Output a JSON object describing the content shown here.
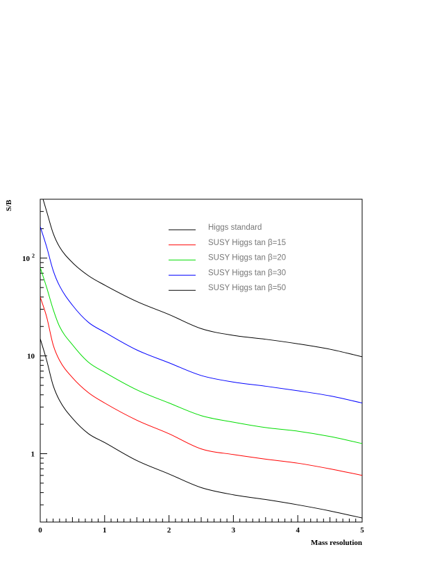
{
  "chart_data": {
    "type": "line",
    "title": "",
    "xlabel": "Mass resolution",
    "ylabel": "S/B",
    "xlim": [
      0,
      5
    ],
    "ylim": [
      0.2,
      400
    ],
    "yscale": "log",
    "grid": false,
    "legend_position": "top-center",
    "x_ticks": [
      0,
      1,
      2,
      3,
      4,
      5
    ],
    "x_tick_labels": [
      "0",
      "1",
      "2",
      "3",
      "4",
      "5"
    ],
    "y_ticks": [
      1,
      10,
      100
    ],
    "y_tick_labels": [
      {
        "base": "1",
        "sup": ""
      },
      {
        "base": "10",
        "sup": ""
      },
      {
        "base": "10",
        "sup": "2"
      }
    ],
    "x": [
      0,
      0.1,
      0.2,
      0.3,
      0.5,
      0.75,
      1,
      1.5,
      2,
      2.5,
      3,
      3.5,
      4,
      4.5,
      5
    ],
    "series": [
      {
        "name": "Higgs standard",
        "color": "#000000",
        "values": [
          15,
          9,
          5,
          3.5,
          2.3,
          1.6,
          1.3,
          0.85,
          0.62,
          0.45,
          0.38,
          0.34,
          0.3,
          0.26,
          0.22
        ]
      },
      {
        "name": "SUSY Higgs tan β=15",
        "color": "#ff0000",
        "values": [
          40,
          25,
          13,
          9,
          6,
          4.2,
          3.3,
          2.2,
          1.6,
          1.12,
          0.98,
          0.88,
          0.8,
          0.7,
          0.6
        ]
      },
      {
        "name": "SUSY Higgs tan β=20",
        "color": "#00dd00",
        "values": [
          80,
          50,
          30,
          20,
          13,
          8.6,
          6.8,
          4.5,
          3.3,
          2.45,
          2.1,
          1.85,
          1.7,
          1.5,
          1.27
        ]
      },
      {
        "name": "SUSY Higgs tan β=30",
        "color": "#0000ff",
        "values": [
          210,
          130,
          75,
          52,
          33,
          22,
          17.5,
          11.5,
          8.5,
          6.3,
          5.4,
          4.9,
          4.4,
          3.9,
          3.3
        ]
      },
      {
        "name": "SUSY Higgs tan β=50",
        "color": "#000000",
        "values": [
          500,
          300,
          180,
          130,
          90,
          66,
          53,
          36,
          26.5,
          19,
          16.2,
          14.8,
          13.3,
          11.7,
          9.8
        ]
      }
    ]
  },
  "legend": {
    "items": [
      {
        "label": "Higgs standard",
        "color": "#000000"
      },
      {
        "label": "SUSY Higgs tan β=15",
        "color": "#ff0000"
      },
      {
        "label": "SUSY Higgs tan β=20",
        "color": "#00dd00"
      },
      {
        "label": "SUSY Higgs tan β=30",
        "color": "#0000ff"
      },
      {
        "label": "SUSY Higgs tan β=50",
        "color": "#000000"
      }
    ]
  }
}
